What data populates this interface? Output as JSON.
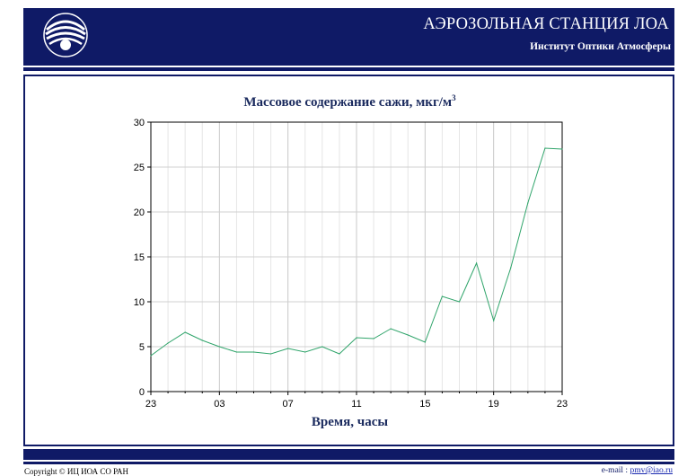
{
  "header": {
    "site_title": "АЭРОЗОЛЬНАЯ СТАНЦИЯ ЛОА",
    "site_subtitle": "Институт Оптики Атмосферы",
    "logo_icon": "institute-logo-icon"
  },
  "footer": {
    "copyright": "Copyright © ИЦ ИОА СО РАН",
    "email_prefix": "e-mail : ",
    "email": "pmv@iao.ru"
  },
  "chart_data": {
    "type": "line",
    "title": "Массовое содержание сажи, мкг/м",
    "title_sup": "3",
    "xlabel": "Время, часы",
    "ylabel": "",
    "ylim": [
      0,
      30
    ],
    "yticks": [
      "0",
      "5",
      "10",
      "15",
      "20",
      "25",
      "30"
    ],
    "xticks": [
      "23",
      "03",
      "07",
      "11",
      "15",
      "19",
      "23"
    ],
    "grid": true,
    "line_color": "#2fa46a",
    "x": [
      0,
      1,
      2,
      3,
      4,
      5,
      6,
      7,
      8,
      9,
      10,
      11,
      12,
      13,
      14,
      15,
      16,
      17,
      18,
      19,
      20,
      21,
      22,
      23,
      24
    ],
    "values": [
      4.0,
      5.4,
      6.6,
      5.7,
      5.0,
      4.4,
      4.4,
      4.2,
      4.8,
      4.4,
      5.0,
      4.2,
      6.0,
      5.9,
      7.0,
      6.3,
      5.5,
      10.6,
      10.0,
      14.3,
      7.9,
      13.8,
      21.0,
      27.1,
      27.0
    ]
  }
}
